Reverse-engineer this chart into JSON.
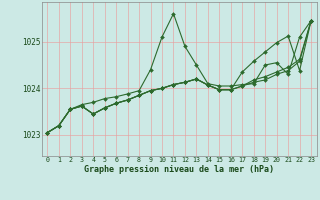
{
  "title": "Graphe pression niveau de la mer (hPa)",
  "bg_color": "#cce9e5",
  "grid_color": "#e8a0a0",
  "line_color": "#2d6a2d",
  "text_color": "#1a4a1a",
  "xlim": [
    -0.5,
    23.5
  ],
  "ylim": [
    1022.55,
    1025.85
  ],
  "yticks": [
    1023,
    1024,
    1025
  ],
  "xticks": [
    0,
    1,
    2,
    3,
    4,
    5,
    6,
    7,
    8,
    9,
    10,
    11,
    12,
    13,
    14,
    15,
    16,
    17,
    18,
    19,
    20,
    21,
    22,
    23
  ],
  "series": [
    [
      1023.05,
      1023.2,
      1023.55,
      1023.65,
      1023.7,
      1023.78,
      1023.82,
      1023.88,
      1023.95,
      1024.4,
      1025.1,
      1025.6,
      1024.9,
      1024.5,
      1024.1,
      1024.05,
      1024.05,
      1024.08,
      1024.1,
      1024.5,
      1024.55,
      1024.3,
      1025.1,
      1025.45
    ],
    [
      1023.05,
      1023.2,
      1023.55,
      1023.62,
      1023.45,
      1023.58,
      1023.68,
      1023.75,
      1023.85,
      1023.95,
      1024.0,
      1024.08,
      1024.13,
      1024.2,
      1024.07,
      1023.97,
      1023.97,
      1024.05,
      1024.18,
      1024.25,
      1024.35,
      1024.45,
      1024.62,
      1025.45
    ],
    [
      1023.05,
      1023.2,
      1023.55,
      1023.62,
      1023.45,
      1023.58,
      1023.68,
      1023.75,
      1023.85,
      1023.95,
      1024.0,
      1024.08,
      1024.13,
      1024.2,
      1024.07,
      1023.97,
      1023.97,
      1024.05,
      1024.13,
      1024.18,
      1024.3,
      1024.38,
      1024.58,
      1025.45
    ],
    [
      1023.05,
      1023.2,
      1023.55,
      1023.62,
      1023.45,
      1023.58,
      1023.68,
      1023.75,
      1023.85,
      1023.95,
      1024.0,
      1024.08,
      1024.13,
      1024.2,
      1024.07,
      1023.97,
      1023.97,
      1024.35,
      1024.58,
      1024.78,
      1024.98,
      1025.12,
      1024.38,
      1025.45
    ]
  ]
}
